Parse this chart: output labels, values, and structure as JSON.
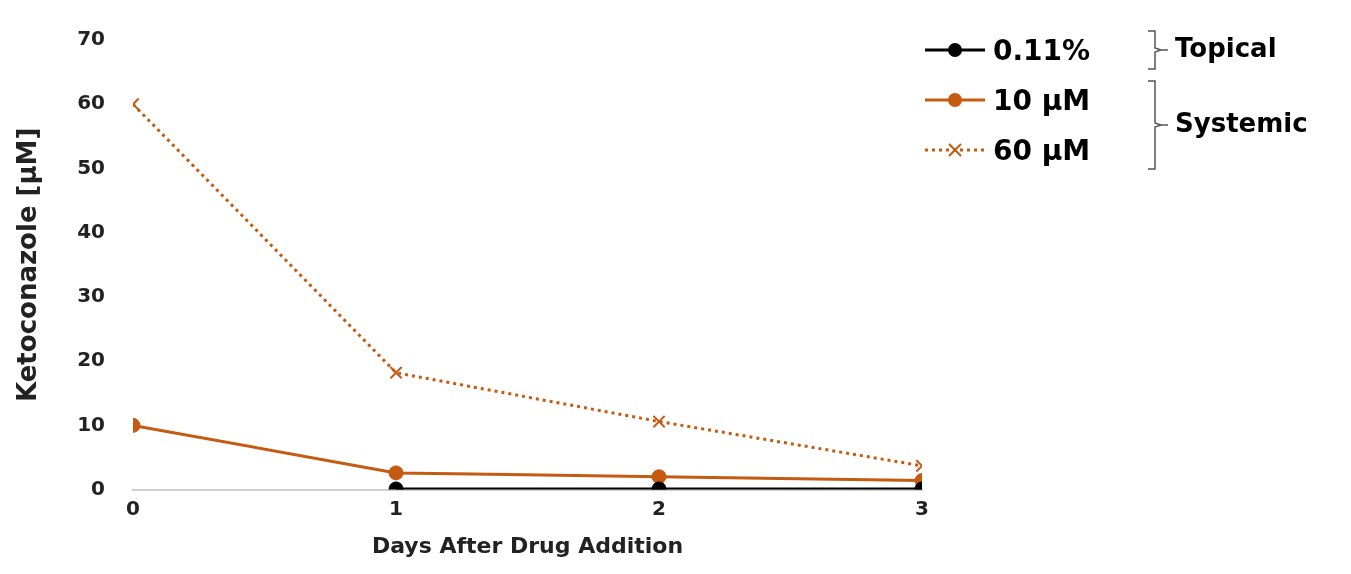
{
  "chart_data": {
    "type": "line",
    "xlabel": "Days After Drug Addition",
    "ylabel": "Ketoconazole [µM]",
    "x": [
      0,
      1,
      2,
      3
    ],
    "xlim": [
      0,
      3
    ],
    "xticks": [
      0,
      1,
      2,
      3
    ],
    "ylim": [
      0,
      70
    ],
    "yticks": [
      0,
      10,
      20,
      30,
      40,
      50,
      60,
      70
    ],
    "grid": false,
    "legend": "top right",
    "annotations": [
      "Topical",
      "Systemic"
    ],
    "series": [
      {
        "name": "0.11%",
        "color": "#000000",
        "marker": "circle",
        "line_style": "solid",
        "values": [
          null,
          0.1,
          0.1,
          0.1
        ]
      },
      {
        "name": "10 µM",
        "color": "#c55a11",
        "marker": "circle",
        "line_style": "solid",
        "values": [
          10,
          2.6,
          2.0,
          1.4
        ]
      },
      {
        "name": "60 µM",
        "color": "#c55a11",
        "marker": "cross",
        "line_style": "dotted",
        "values": [
          60,
          18.2,
          10.6,
          3.7
        ]
      }
    ]
  }
}
